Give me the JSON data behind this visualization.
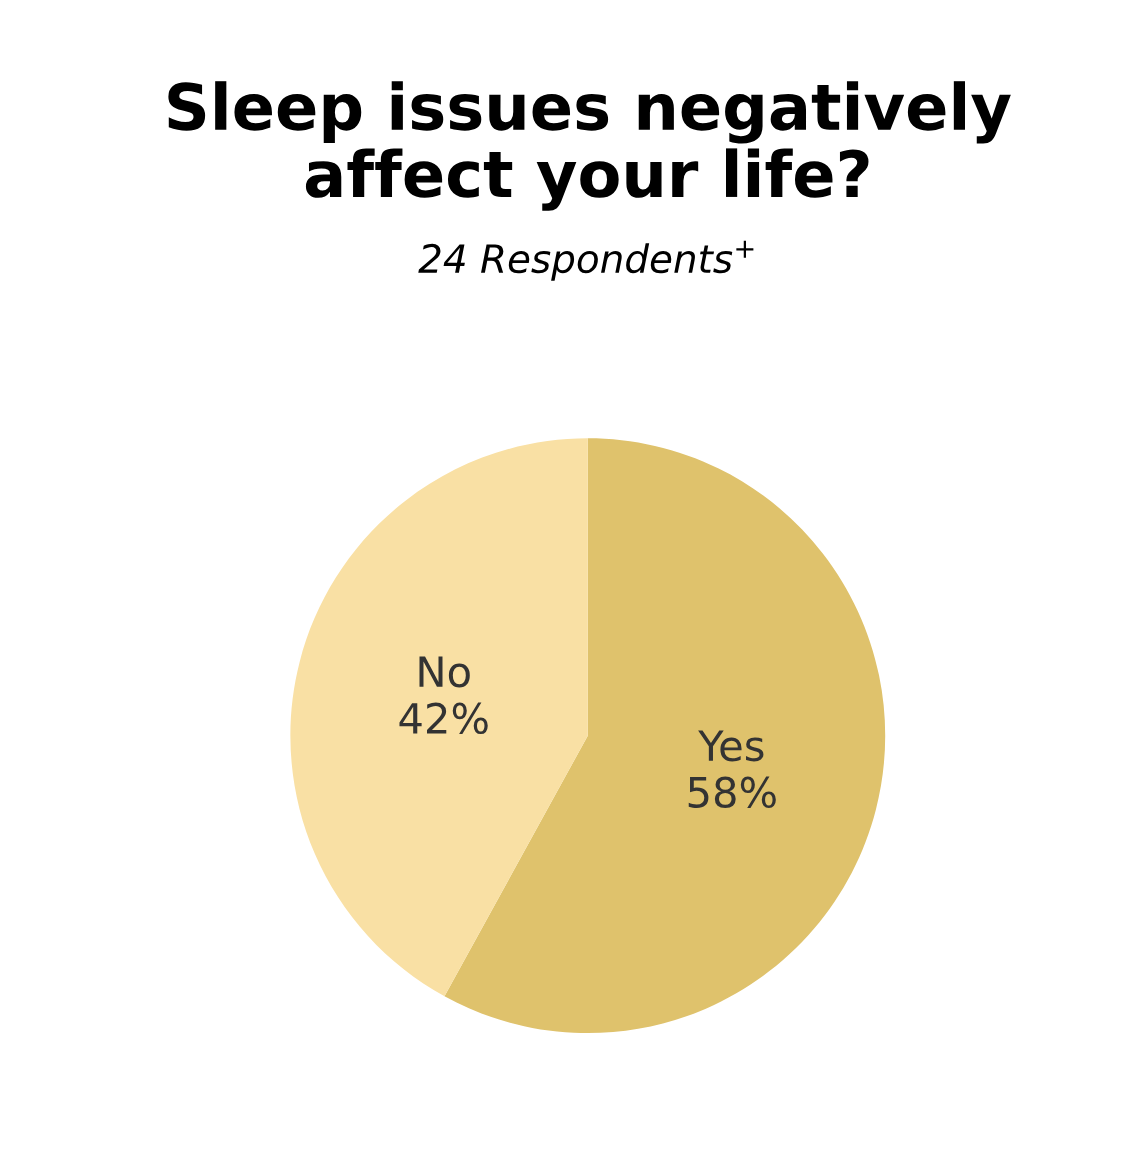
{
  "chart_data": {
    "type": "pie",
    "title": "Sleep issues negatively\naffect your life?",
    "subtitle": "24 Respondents$^{+}$",
    "categories": [
      "Yes",
      "No"
    ],
    "values": [
      58,
      42
    ],
    "colors": [
      "#dfc26c",
      "#f9e0a4"
    ],
    "value_labels": [
      "58%",
      "42%"
    ],
    "legend": false
  }
}
